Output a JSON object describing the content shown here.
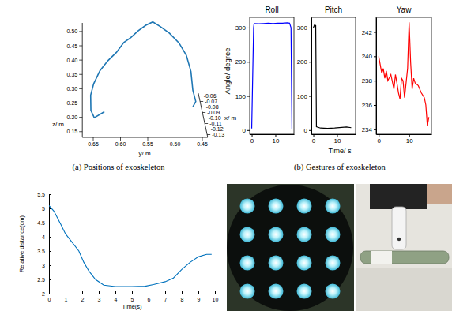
{
  "chart_data": [
    {
      "type": "line3d",
      "caption": "(a) Positions of exoskeleton",
      "x_label": "x/ m",
      "y_label": "y/ m",
      "z_label": "z/ m",
      "color": "#1f77b4",
      "x": [
        -0.128,
        -0.13,
        -0.129,
        -0.127,
        -0.125,
        -0.123,
        -0.121,
        -0.119,
        -0.117,
        -0.116,
        -0.115,
        -0.114,
        -0.113,
        -0.114,
        -0.116,
        -0.118,
        -0.12,
        -0.122,
        -0.124,
        -0.126,
        -0.125
      ],
      "y": [
        0.628,
        0.647,
        0.653,
        0.653,
        0.647,
        0.635,
        0.62,
        0.604,
        0.59,
        0.577,
        0.563,
        0.549,
        0.536,
        0.522,
        0.506,
        0.489,
        0.476,
        0.468,
        0.465,
        0.46,
        0.465
      ],
      "z": [
        0.206,
        0.189,
        0.213,
        0.262,
        0.298,
        0.34,
        0.371,
        0.396,
        0.427,
        0.442,
        0.464,
        0.481,
        0.491,
        0.476,
        0.457,
        0.427,
        0.388,
        0.335,
        0.274,
        0.238,
        0.218
      ],
      "xlim": [
        -0.135,
        -0.055
      ],
      "ylim": [
        0.67,
        0.44
      ],
      "zlim": [
        0.13,
        0.53
      ],
      "xticks": [
        -0.06,
        -0.07,
        -0.08,
        -0.09,
        {
          "value": -0.1,
          "label": "-0.10"
        },
        -0.11,
        -0.12,
        -0.13
      ],
      "yticks": [
        0.65,
        {
          "value": 0.6,
          "label": "0.60"
        },
        0.55,
        {
          "value": 0.5,
          "label": "0.50"
        },
        0.45
      ],
      "zticks": [
        0.15,
        {
          "value": 0.2,
          "label": "0.20"
        },
        0.25,
        {
          "value": 0.3,
          "label": "0.30"
        },
        0.35,
        {
          "value": 0.4,
          "label": "0.40"
        },
        0.45,
        {
          "value": 0.5,
          "label": "0.50"
        }
      ]
    },
    {
      "type": "line",
      "title": "Roll",
      "y_label": "Angle/ degree",
      "color": "#0000ff",
      "x": [
        0,
        0.8,
        1,
        3,
        5,
        7,
        9,
        11,
        13,
        15,
        16,
        16.6,
        17
      ],
      "values": [
        5,
        300,
        312,
        311,
        312,
        313,
        312,
        313,
        313,
        314,
        313,
        300,
        2
      ],
      "xlim": [
        -0.85,
        17.85
      ],
      "ylim": [
        -12,
        330
      ],
      "xticks": [
        0,
        10
      ],
      "yticks": [
        0,
        100,
        200,
        300
      ]
    },
    {
      "type": "line",
      "title": "Pitch",
      "x_label": "Time/ s",
      "caption": "(b) Gestures of exoskeleton",
      "color": "#000000",
      "x": [
        0,
        0.5,
        1,
        1.3,
        3,
        6,
        9,
        12,
        14,
        16
      ],
      "values": [
        300,
        308,
        306,
        10,
        6,
        5,
        6,
        8,
        9,
        7
      ],
      "xlim": [
        -0.85,
        17.85
      ],
      "ylim": [
        -12,
        330
      ],
      "xticks": [
        0,
        10
      ],
      "yticks": [
        0,
        100,
        200,
        300
      ]
    },
    {
      "type": "line",
      "title": "Yaw",
      "color": "#ff0000",
      "x": [
        0,
        0.5,
        1,
        1.5,
        2,
        2.5,
        3,
        4,
        5,
        5.5,
        6,
        6.5,
        7,
        7.5,
        8,
        8.5,
        9,
        9.5,
        10,
        10.5,
        11,
        11.5,
        12,
        13,
        14,
        15,
        15.5,
        16,
        16.5
      ],
      "values": [
        240,
        239.3,
        238.6,
        239,
        238.2,
        238.8,
        238,
        238.5,
        237.3,
        238.5,
        237.8,
        237,
        236.5,
        238.2,
        238,
        236.6,
        237.8,
        239,
        242.8,
        239.5,
        237.3,
        238.2,
        237.8,
        237.6,
        237,
        236.6,
        236,
        234.3,
        235
      ],
      "xlim": [
        -0.85,
        17.35
      ],
      "ylim": [
        233.6,
        243.2
      ],
      "xticks": [
        0,
        10
      ],
      "yticks": [
        234,
        236,
        238,
        240,
        242
      ]
    },
    {
      "type": "line",
      "x_label": "Time(s)",
      "y_label": "Relative distance(cm)",
      "color": "#0072bd",
      "x": [
        0,
        0.3,
        0.7,
        1,
        1.4,
        1.8,
        2.1,
        2.4,
        2.8,
        3.3,
        4,
        5,
        5.8,
        6.3,
        7,
        7.5,
        8,
        8.5,
        9,
        9.5,
        9.8
      ],
      "values": [
        5.1,
        4.9,
        4.45,
        4.1,
        3.8,
        3.5,
        3.1,
        2.8,
        2.5,
        2.3,
        2.25,
        2.25,
        2.26,
        2.32,
        2.42,
        2.55,
        2.85,
        3.1,
        3.3,
        3.38,
        3.38
      ],
      "xlim": [
        0,
        10
      ],
      "ylim": [
        2,
        5.5
      ],
      "xticks": [
        0,
        1,
        2,
        3,
        4,
        5,
        6,
        7,
        8,
        9,
        10
      ],
      "yticks": [
        2,
        2.5,
        3,
        3.5,
        4,
        4.5,
        5,
        5.5
      ]
    }
  ]
}
